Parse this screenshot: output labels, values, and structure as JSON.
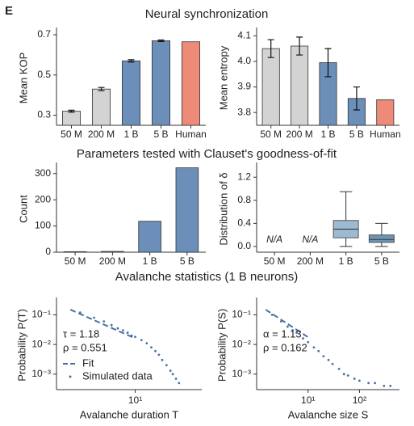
{
  "panel_label": "E",
  "section_titles": [
    "Neural synchronization",
    "Parameters tested with Clauset's goodness-of-fit",
    "Avalanche statistics (1 B neurons)"
  ],
  "chart_data": [
    {
      "type": "bar",
      "ylabel": "Mean KOP",
      "categories": [
        "50 M",
        "200 M",
        "1 B",
        "5 B",
        "Human"
      ],
      "values": [
        0.32,
        0.43,
        0.57,
        0.67,
        0.665
      ],
      "errors": [
        0.005,
        0.008,
        0.006,
        0.004,
        0
      ],
      "colors": [
        "#d3d3d3",
        "#d3d3d3",
        "#6b8fb8",
        "#6b8fb8",
        "#ee8a78"
      ],
      "label_colors": [
        "#222222",
        "#222222",
        "#222222",
        "#222222",
        "#d03030"
      ],
      "ylim": [
        0.25,
        0.72
      ],
      "yticks": [
        0.3,
        0.5,
        0.7
      ]
    },
    {
      "type": "bar",
      "ylabel": "Mean entropy",
      "categories": [
        "50 M",
        "200 M",
        "1 B",
        "5 B",
        "Human"
      ],
      "values": [
        4.05,
        4.06,
        3.995,
        3.855,
        3.85
      ],
      "errors": [
        0.035,
        0.035,
        0.055,
        0.045,
        0
      ],
      "colors": [
        "#d3d3d3",
        "#d3d3d3",
        "#6b8fb8",
        "#6b8fb8",
        "#ee8a78"
      ],
      "label_colors": [
        "#222222",
        "#222222",
        "#222222",
        "#222222",
        "#d03030"
      ],
      "ylim": [
        3.75,
        4.12
      ],
      "yticks": [
        3.8,
        3.9,
        {
          "value": 4,
          "label": "4.0"
        },
        4.1
      ]
    },
    {
      "type": "bar",
      "ylabel": "Count",
      "categories": [
        "50 M",
        "200 M",
        "1 B",
        "5 B"
      ],
      "values": [
        2,
        3,
        118,
        322
      ],
      "colors": [
        "#6b8fb8",
        "#6b8fb8",
        "#6b8fb8",
        "#6b8fb8"
      ],
      "ylim": [
        0,
        330
      ],
      "yticks": [
        0,
        100,
        200,
        300
      ]
    },
    {
      "type": "box",
      "ylabel": "Distribution of δ",
      "categories": [
        "50 M",
        "200 M",
        "1 B",
        "5 B"
      ],
      "missing_label": "N/A",
      "boxes": [
        null,
        null,
        {
          "whislo": 0.0,
          "q1": 0.15,
          "median": 0.3,
          "q3": 0.45,
          "whishi": 0.95
        },
        {
          "whislo": 0.0,
          "q1": 0.07,
          "median": 0.12,
          "q3": 0.2,
          "whishi": 0.4
        }
      ],
      "colors": [
        "#9dbad3",
        "#9dbad3",
        "#9dbad3",
        "#6d94b6"
      ],
      "ylim": [
        -0.1,
        1.4
      ],
      "yticks": [
        {
          "value": 0,
          "label": "0.0"
        },
        0.4,
        0.8,
        1.2
      ]
    },
    {
      "type": "loglog",
      "xlabel": "Avalanche duration T",
      "ylabel": "Probability P(T)",
      "annotations": [
        "τ = 1.18",
        "ρ = 0.551"
      ],
      "annotation_color": "#d03030",
      "legend": "lower left",
      "series": [
        {
          "name": "Fit",
          "color": "#4a6fa5",
          "style": "dashed",
          "x": [
            1.5,
            10
          ],
          "values": [
            0.15,
            0.016
          ]
        },
        {
          "name": "Simulated data",
          "color": "#4a6fa5",
          "style": "dots",
          "x": [
            2,
            3,
            4,
            5,
            6,
            7,
            8,
            9,
            10,
            12,
            14,
            16,
            18,
            20,
            22,
            25,
            28,
            30,
            33,
            36
          ],
          "values": [
            0.12,
            0.08,
            0.06,
            0.045,
            0.035,
            0.03,
            0.025,
            0.02,
            0.018,
            0.014,
            0.011,
            0.008,
            0.006,
            0.0045,
            0.003,
            0.002,
            0.0013,
            0.001,
            0.0007,
            0.0005
          ]
        }
      ],
      "xlim": [
        1,
        70
      ],
      "ylim": [
        0.0003,
        0.3
      ],
      "xticks": [
        {
          "value": 10,
          "label": "10¹"
        }
      ],
      "yticks": [
        {
          "value": 0.1,
          "label": "10⁻¹"
        },
        {
          "value": 0.01,
          "label": "10⁻²"
        },
        {
          "value": 0.001,
          "label": "10⁻³"
        }
      ]
    },
    {
      "type": "loglog",
      "xlabel": "Avalanche size S",
      "ylabel": "Probability P(S)",
      "annotations": [
        "α = 1.13",
        "ρ = 0.162"
      ],
      "annotation_color": "#d03030",
      "series": [
        {
          "color": "#4a6fa5",
          "style": "dashed",
          "x": [
            1.5,
            10
          ],
          "values": [
            0.15,
            0.0176
          ]
        },
        {
          "color": "#4a6fa5",
          "style": "dots",
          "x": [
            2,
            3,
            4,
            5,
            6,
            8,
            10,
            13,
            16,
            20,
            25,
            30,
            40,
            50,
            60,
            80,
            100,
            150,
            200,
            300,
            400
          ],
          "values": [
            0.1,
            0.06,
            0.04,
            0.03,
            0.025,
            0.016,
            0.012,
            0.008,
            0.006,
            0.004,
            0.003,
            0.0022,
            0.0015,
            0.001,
            0.0009,
            0.0007,
            0.0006,
            0.0005,
            0.0005,
            0.0004,
            0.0004
          ]
        }
      ],
      "xlim": [
        1,
        600
      ],
      "ylim": [
        0.0003,
        0.3
      ],
      "xticks": [
        {
          "value": 10,
          "label": "10¹"
        },
        {
          "value": 100,
          "label": "10²"
        }
      ],
      "yticks": [
        {
          "value": 0.1,
          "label": "10⁻¹"
        },
        {
          "value": 0.01,
          "label": "10⁻²"
        },
        {
          "value": 0.001,
          "label": "10⁻³"
        }
      ]
    }
  ]
}
